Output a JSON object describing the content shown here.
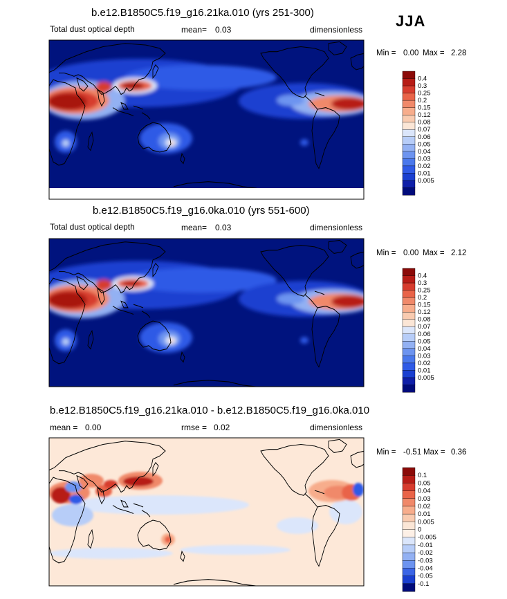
{
  "season": "JJA",
  "colors": {
    "seq": [
      "#000b7a",
      "#0f1fa8",
      "#1a3fd0",
      "#2f5ae6",
      "#4a78ec",
      "#6d94f0",
      "#93b1f3",
      "#b7cdf8",
      "#dbe6fb",
      "#fbe6d6",
      "#f9cbb0",
      "#f7ad8c",
      "#f0896a",
      "#e96449",
      "#d73c2e",
      "#b71c16",
      "#8b0a08"
    ],
    "diff": [
      "#000b7a",
      "#1a3fd0",
      "#3b65e6",
      "#6d94f0",
      "#93b1f3",
      "#b7cdf8",
      "#dbe6fb",
      "#fdf0e6",
      "#fbe6d6",
      "#f9cbb0",
      "#f7ad8c",
      "#f0896a",
      "#e96449",
      "#d73c2e",
      "#b71c16",
      "#8b0a08"
    ],
    "ocean_base": "#00137e",
    "diff_base": "#fde8d8"
  },
  "chart_data": [
    {
      "type": "heatmap",
      "title": "b.e12.B1850C5.f19_g16.21ka.010 (yrs 251-300)",
      "left_label": "Total dust optical depth",
      "mean_label": "mean=",
      "mean_value": "0.03",
      "units": "dimensionless",
      "min_label": "Min =",
      "min_value": "0.00",
      "max_label": "Max =",
      "max_value": "2.28",
      "colorbar_labels": [
        "0.4",
        "0.3",
        "0.25",
        "0.2",
        "0.15",
        "0.12",
        "0.08",
        "0.07",
        "0.06",
        "0.05",
        "0.04",
        "0.03",
        "0.02",
        "0.01",
        "0.005"
      ],
      "colorbar_levels": [
        0.005,
        0.01,
        0.02,
        0.03,
        0.04,
        0.05,
        0.06,
        0.07,
        0.08,
        0.12,
        0.15,
        0.2,
        0.25,
        0.3,
        0.4
      ]
    },
    {
      "type": "heatmap",
      "title": "b.e12.B1850C5.f19_g16.0ka.010 (yrs 551-600)",
      "left_label": "Total dust optical depth",
      "mean_label": "mean=",
      "mean_value": "0.03",
      "units": "dimensionless",
      "min_label": "Min =",
      "min_value": "0.00",
      "max_label": "Max =",
      "max_value": "2.12",
      "colorbar_labels": [
        "0.4",
        "0.3",
        "0.25",
        "0.2",
        "0.15",
        "0.12",
        "0.08",
        "0.07",
        "0.06",
        "0.05",
        "0.04",
        "0.03",
        "0.02",
        "0.01",
        "0.005"
      ],
      "colorbar_levels": [
        0.005,
        0.01,
        0.02,
        0.03,
        0.04,
        0.05,
        0.06,
        0.07,
        0.08,
        0.12,
        0.15,
        0.2,
        0.25,
        0.3,
        0.4
      ]
    },
    {
      "type": "heatmap",
      "title": "b.e12.B1850C5.f19_g16.21ka.010 - b.e12.B1850C5.f19_g16.0ka.010",
      "left_label": "mean =",
      "mean_value": "0.00",
      "rmse_label": "rmse =",
      "rmse_value": "0.02",
      "units": "dimensionless",
      "min_label": "Min =",
      "min_value": "-0.51",
      "max_label": "Max =",
      "max_value": "0.36",
      "colorbar_labels": [
        "0.1",
        "0.05",
        "0.04",
        "0.03",
        "0.02",
        "0.01",
        "0.005",
        "0",
        "-0.005",
        "-0.01",
        "-0.02",
        "-0.03",
        "-0.04",
        "-0.05",
        "-0.1"
      ],
      "colorbar_levels": [
        -0.1,
        -0.05,
        -0.04,
        -0.03,
        -0.02,
        -0.01,
        -0.005,
        0,
        0.005,
        0.01,
        0.02,
        0.03,
        0.04,
        0.05,
        0.1
      ]
    }
  ]
}
